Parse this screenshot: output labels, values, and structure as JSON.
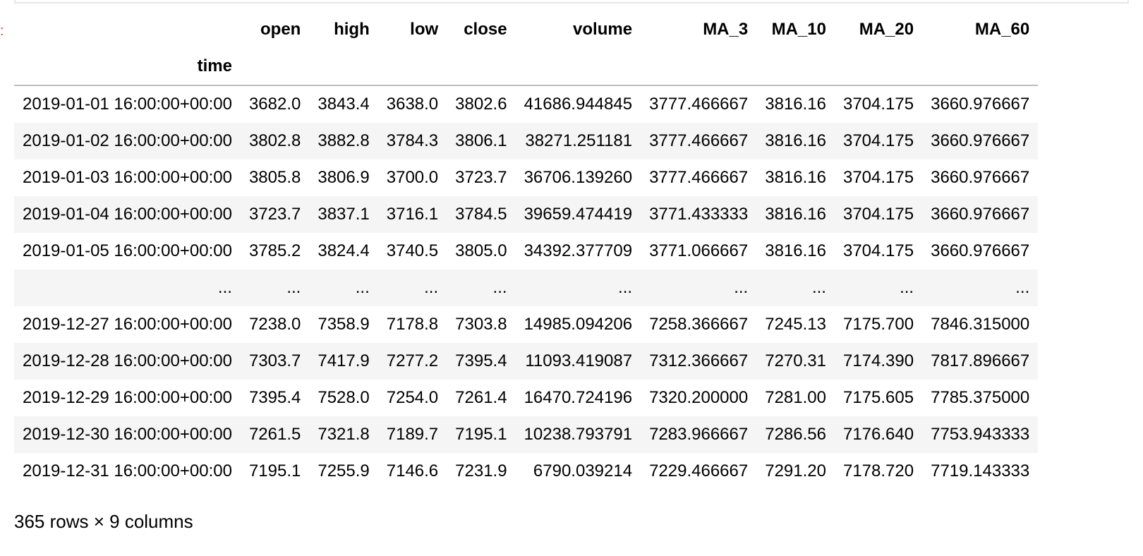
{
  "table": {
    "index_name": "time",
    "columns": [
      "open",
      "high",
      "low",
      "close",
      "volume",
      "MA_3",
      "MA_10",
      "MA_20",
      "MA_60"
    ],
    "rows": [
      {
        "index": "2019-01-01 16:00:00+00:00",
        "values": [
          "3682.0",
          "3843.4",
          "3638.0",
          "3802.6",
          "41686.944845",
          "3777.466667",
          "3816.16",
          "3704.175",
          "3660.976667"
        ]
      },
      {
        "index": "2019-01-02 16:00:00+00:00",
        "values": [
          "3802.8",
          "3882.8",
          "3784.3",
          "3806.1",
          "38271.251181",
          "3777.466667",
          "3816.16",
          "3704.175",
          "3660.976667"
        ]
      },
      {
        "index": "2019-01-03 16:00:00+00:00",
        "values": [
          "3805.8",
          "3806.9",
          "3700.0",
          "3723.7",
          "36706.139260",
          "3777.466667",
          "3816.16",
          "3704.175",
          "3660.976667"
        ]
      },
      {
        "index": "2019-01-04 16:00:00+00:00",
        "values": [
          "3723.7",
          "3837.1",
          "3716.1",
          "3784.5",
          "39659.474419",
          "3771.433333",
          "3816.16",
          "3704.175",
          "3660.976667"
        ]
      },
      {
        "index": "2019-01-05 16:00:00+00:00",
        "values": [
          "3785.2",
          "3824.4",
          "3740.5",
          "3805.0",
          "34392.377709",
          "3771.066667",
          "3816.16",
          "3704.175",
          "3660.976667"
        ]
      },
      {
        "index": "...",
        "values": [
          "...",
          "...",
          "...",
          "...",
          "...",
          "...",
          "...",
          "...",
          "..."
        ]
      },
      {
        "index": "2019-12-27 16:00:00+00:00",
        "values": [
          "7238.0",
          "7358.9",
          "7178.8",
          "7303.8",
          "14985.094206",
          "7258.366667",
          "7245.13",
          "7175.700",
          "7846.315000"
        ]
      },
      {
        "index": "2019-12-28 16:00:00+00:00",
        "values": [
          "7303.7",
          "7417.9",
          "7277.2",
          "7395.4",
          "11093.419087",
          "7312.366667",
          "7270.31",
          "7174.390",
          "7817.896667"
        ]
      },
      {
        "index": "2019-12-29 16:00:00+00:00",
        "values": [
          "7395.4",
          "7528.0",
          "7254.0",
          "7261.4",
          "16470.724196",
          "7320.200000",
          "7281.00",
          "7175.605",
          "7785.375000"
        ]
      },
      {
        "index": "2019-12-30 16:00:00+00:00",
        "values": [
          "7261.5",
          "7321.8",
          "7189.7",
          "7195.1",
          "10238.793791",
          "7283.966667",
          "7286.56",
          "7176.640",
          "7753.943333"
        ]
      },
      {
        "index": "2019-12-31 16:00:00+00:00",
        "values": [
          "7195.1",
          "7255.9",
          "7146.6",
          "7231.9",
          "6790.039214",
          "7229.466667",
          "7291.20",
          "7178.720",
          "7719.143333"
        ]
      }
    ]
  },
  "caption": "365 rows × 9 columns",
  "colors": {
    "stripe": "#f5f5f5",
    "header_rule": "#bdbdbd",
    "prompt_marker": "#d84315"
  }
}
